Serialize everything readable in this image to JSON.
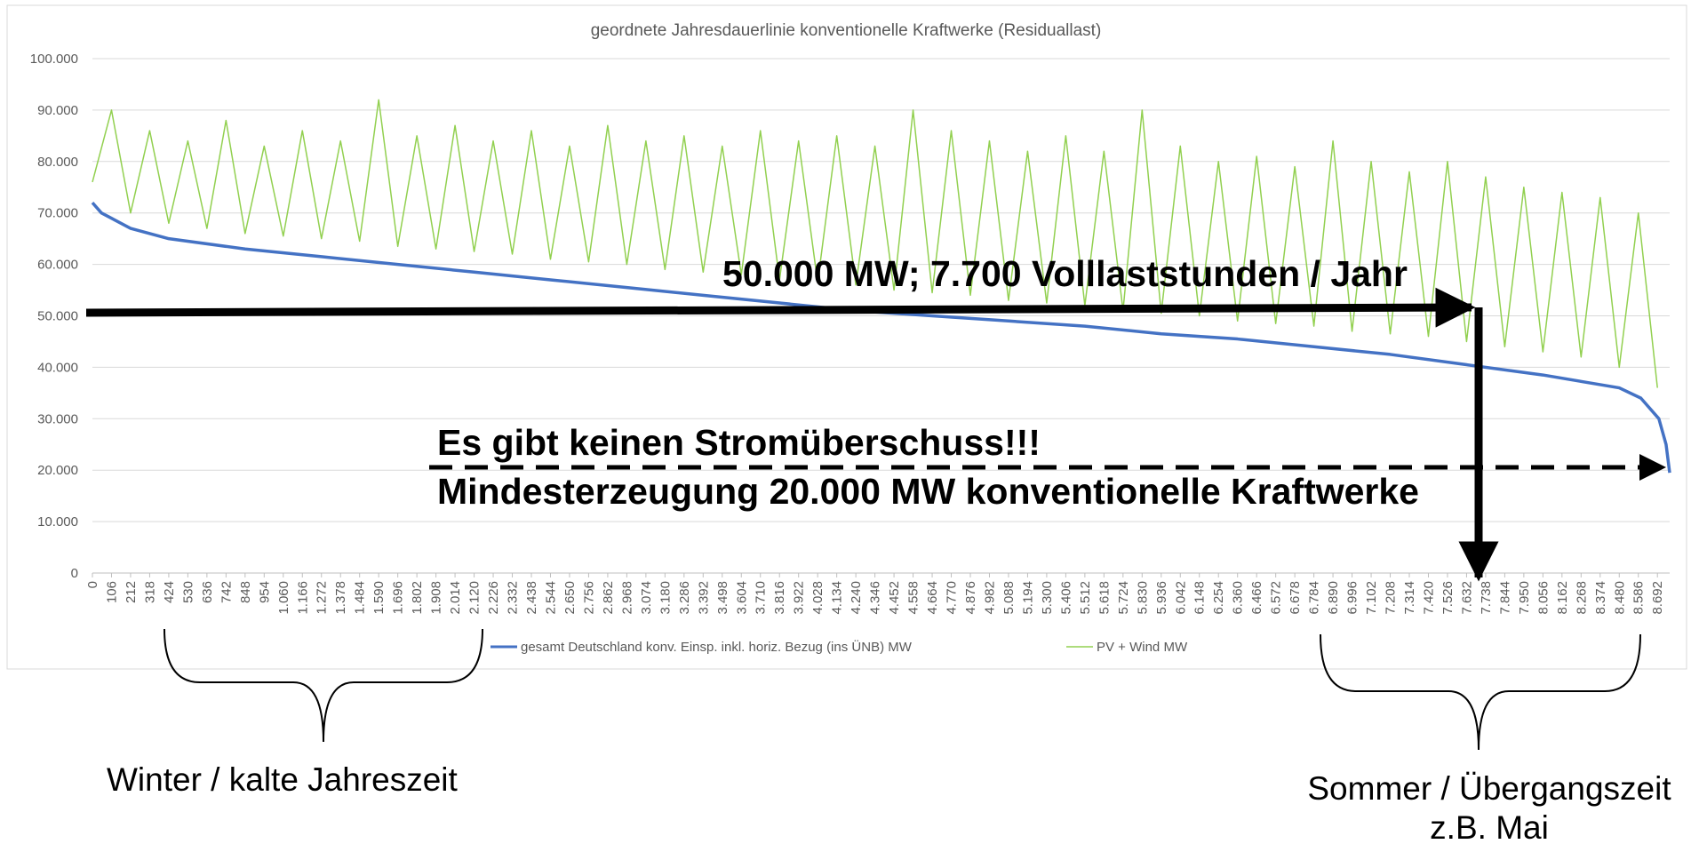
{
  "chart_data": {
    "type": "line",
    "title": "geordnete Jahresdauerlinie konventionelle Kraftwerke (Residuallast)",
    "xlim": [
      0,
      8760
    ],
    "ylim": [
      0,
      100000
    ],
    "yticks": [
      0,
      {
        "value": 10000,
        "label": "10.000"
      },
      {
        "value": 20000,
        "label": "20.000"
      },
      {
        "value": 30000,
        "label": "30.000"
      },
      {
        "value": 40000,
        "label": "40.000"
      },
      {
        "value": 50000,
        "label": "50.000"
      },
      {
        "value": 60000,
        "label": "60.000"
      },
      {
        "value": 70000,
        "label": "70.000"
      },
      {
        "value": 80000,
        "label": "80.000"
      },
      {
        "value": 90000,
        "label": "90.000"
      },
      {
        "value": 100000,
        "label": "100.000"
      }
    ],
    "xticks": [
      0,
      106,
      212,
      318,
      424,
      530,
      636,
      742,
      848,
      954,
      {
        "value": 1060,
        "label": "1.060"
      },
      {
        "value": 1166,
        "label": "1.166"
      },
      {
        "value": 1272,
        "label": "1.272"
      },
      {
        "value": 1378,
        "label": "1.378"
      },
      {
        "value": 1484,
        "label": "1.484"
      },
      {
        "value": 1590,
        "label": "1.590"
      },
      {
        "value": 1696,
        "label": "1.696"
      },
      {
        "value": 1802,
        "label": "1.802"
      },
      {
        "value": 1908,
        "label": "1.908"
      },
      {
        "value": 2014,
        "label": "2.014"
      },
      {
        "value": 2120,
        "label": "2.120"
      },
      {
        "value": 2226,
        "label": "2.226"
      },
      {
        "value": 2332,
        "label": "2.332"
      },
      {
        "value": 2438,
        "label": "2.438"
      },
      {
        "value": 2544,
        "label": "2.544"
      },
      {
        "value": 2650,
        "label": "2.650"
      },
      {
        "value": 2756,
        "label": "2.756"
      },
      {
        "value": 2862,
        "label": "2.862"
      },
      {
        "value": 2968,
        "label": "2.968"
      },
      {
        "value": 3074,
        "label": "3.074"
      },
      {
        "value": 3180,
        "label": "3.180"
      },
      {
        "value": 3286,
        "label": "3.286"
      },
      {
        "value": 3392,
        "label": "3.392"
      },
      {
        "value": 3498,
        "label": "3.498"
      },
      {
        "value": 3604,
        "label": "3.604"
      },
      {
        "value": 3710,
        "label": "3.710"
      },
      {
        "value": 3816,
        "label": "3.816"
      },
      {
        "value": 3922,
        "label": "3.922"
      },
      {
        "value": 4028,
        "label": "4.028"
      },
      {
        "value": 4134,
        "label": "4.134"
      },
      {
        "value": 4240,
        "label": "4.240"
      },
      {
        "value": 4346,
        "label": "4.346"
      },
      {
        "value": 4452,
        "label": "4.452"
      },
      {
        "value": 4558,
        "label": "4.558"
      },
      {
        "value": 4664,
        "label": "4.664"
      },
      {
        "value": 4770,
        "label": "4.770"
      },
      {
        "value": 4876,
        "label": "4.876"
      },
      {
        "value": 4982,
        "label": "4.982"
      },
      {
        "value": 5088,
        "label": "5.088"
      },
      {
        "value": 5194,
        "label": "5.194"
      },
      {
        "value": 5300,
        "label": "5.300"
      },
      {
        "value": 5406,
        "label": "5.406"
      },
      {
        "value": 5512,
        "label": "5.512"
      },
      {
        "value": 5618,
        "label": "5.618"
      },
      {
        "value": 5724,
        "label": "5.724"
      },
      {
        "value": 5830,
        "label": "5.830"
      },
      {
        "value": 5936,
        "label": "5.936"
      },
      {
        "value": 6042,
        "label": "6.042"
      },
      {
        "value": 6148,
        "label": "6.148"
      },
      {
        "value": 6254,
        "label": "6.254"
      },
      {
        "value": 6360,
        "label": "6.360"
      },
      {
        "value": 6466,
        "label": "6.466"
      },
      {
        "value": 6572,
        "label": "6.572"
      },
      {
        "value": 6678,
        "label": "6.678"
      },
      {
        "value": 6784,
        "label": "6.784"
      },
      {
        "value": 6890,
        "label": "6.890"
      },
      {
        "value": 6996,
        "label": "6.996"
      },
      {
        "value": 7102,
        "label": "7.102"
      },
      {
        "value": 7208,
        "label": "7.208"
      },
      {
        "value": 7314,
        "label": "7.314"
      },
      {
        "value": 7420,
        "label": "7.420"
      },
      {
        "value": 7526,
        "label": "7.526"
      },
      {
        "value": 7632,
        "label": "7.632"
      },
      {
        "value": 7738,
        "label": "7.738"
      },
      {
        "value": 7844,
        "label": "7.844"
      },
      {
        "value": 7950,
        "label": "7.950"
      },
      {
        "value": 8056,
        "label": "8.056"
      },
      {
        "value": 8162,
        "label": "8.162"
      },
      {
        "value": 8268,
        "label": "8.268"
      },
      {
        "value": 8374,
        "label": "8.374"
      },
      {
        "value": 8480,
        "label": "8.480"
      },
      {
        "value": 8586,
        "label": "8.586"
      },
      {
        "value": 8692,
        "label": "8.692"
      }
    ],
    "series": [
      {
        "name": "gesamt Deutschland konv. Einsp. inkl. horiz. Bezug (ins ÜNB) MW",
        "color": "#4472c4",
        "x": [
          0,
          50,
          212,
          424,
          848,
          1272,
          1696,
          2120,
          2544,
          2968,
          3392,
          3816,
          4240,
          4664,
          5088,
          5512,
          5936,
          6360,
          6784,
          7208,
          7632,
          8056,
          8480,
          8600,
          8700,
          8740,
          8760
        ],
        "values": [
          72000,
          70000,
          67000,
          65000,
          63000,
          61500,
          60000,
          58500,
          57000,
          55500,
          54000,
          52500,
          51000,
          50000,
          49000,
          48000,
          46500,
          45500,
          44000,
          42500,
          40500,
          38500,
          36000,
          34000,
          30000,
          25000,
          19500
        ]
      },
      {
        "name": "PV + Wind MW",
        "color": "#92d050",
        "x": [
          0,
          106,
          212,
          318,
          424,
          530,
          636,
          742,
          848,
          954,
          1060,
          1166,
          1272,
          1378,
          1484,
          1590,
          1696,
          1802,
          1908,
          2014,
          2120,
          2226,
          2332,
          2438,
          2544,
          2650,
          2756,
          2862,
          2968,
          3074,
          3180,
          3286,
          3392,
          3498,
          3604,
          3710,
          3816,
          3922,
          4028,
          4134,
          4240,
          4346,
          4452,
          4558,
          4664,
          4770,
          4876,
          4982,
          5088,
          5194,
          5300,
          5406,
          5512,
          5618,
          5724,
          5830,
          5936,
          6042,
          6148,
          6254,
          6360,
          6466,
          6572,
          6678,
          6784,
          6890,
          6996,
          7102,
          7208,
          7314,
          7420,
          7526,
          7632,
          7738,
          7844,
          7950,
          8056,
          8162,
          8268,
          8374,
          8480,
          8586,
          8692
        ],
        "values": [
          76000,
          90000,
          70000,
          86000,
          68000,
          84000,
          67000,
          88000,
          66000,
          83000,
          65500,
          86000,
          65000,
          84000,
          64500,
          92000,
          63500,
          85000,
          63000,
          87000,
          62500,
          84000,
          62000,
          86000,
          61000,
          83000,
          60500,
          87000,
          60000,
          84000,
          59000,
          85000,
          58500,
          83000,
          58000,
          86000,
          57000,
          84000,
          56500,
          85000,
          56000,
          83000,
          55000,
          90000,
          54500,
          86000,
          54000,
          84000,
          53000,
          82000,
          52500,
          85000,
          52000,
          82000,
          51000,
          90000,
          50500,
          83000,
          50000,
          80000,
          49000,
          81000,
          48500,
          79000,
          48000,
          84000,
          47000,
          80000,
          46500,
          78000,
          46000,
          80000,
          45000,
          77000,
          44000,
          75000,
          43000,
          74000,
          42000,
          73000,
          40000,
          70000,
          36000
        ]
      }
    ],
    "grid": true,
    "legend": "bottom",
    "annotations": [
      "50.000 MW; 7.700 Volllaststunden / Jahr",
      "Es gibt keinen Stromüberschuss!!!",
      "Mindesterzeugung 20.000 MW konventionelle Kraftwerke",
      "Winter / kalte Jahreszeit",
      "Sommer / Übergangszeit",
      "z.B. Mai"
    ]
  }
}
